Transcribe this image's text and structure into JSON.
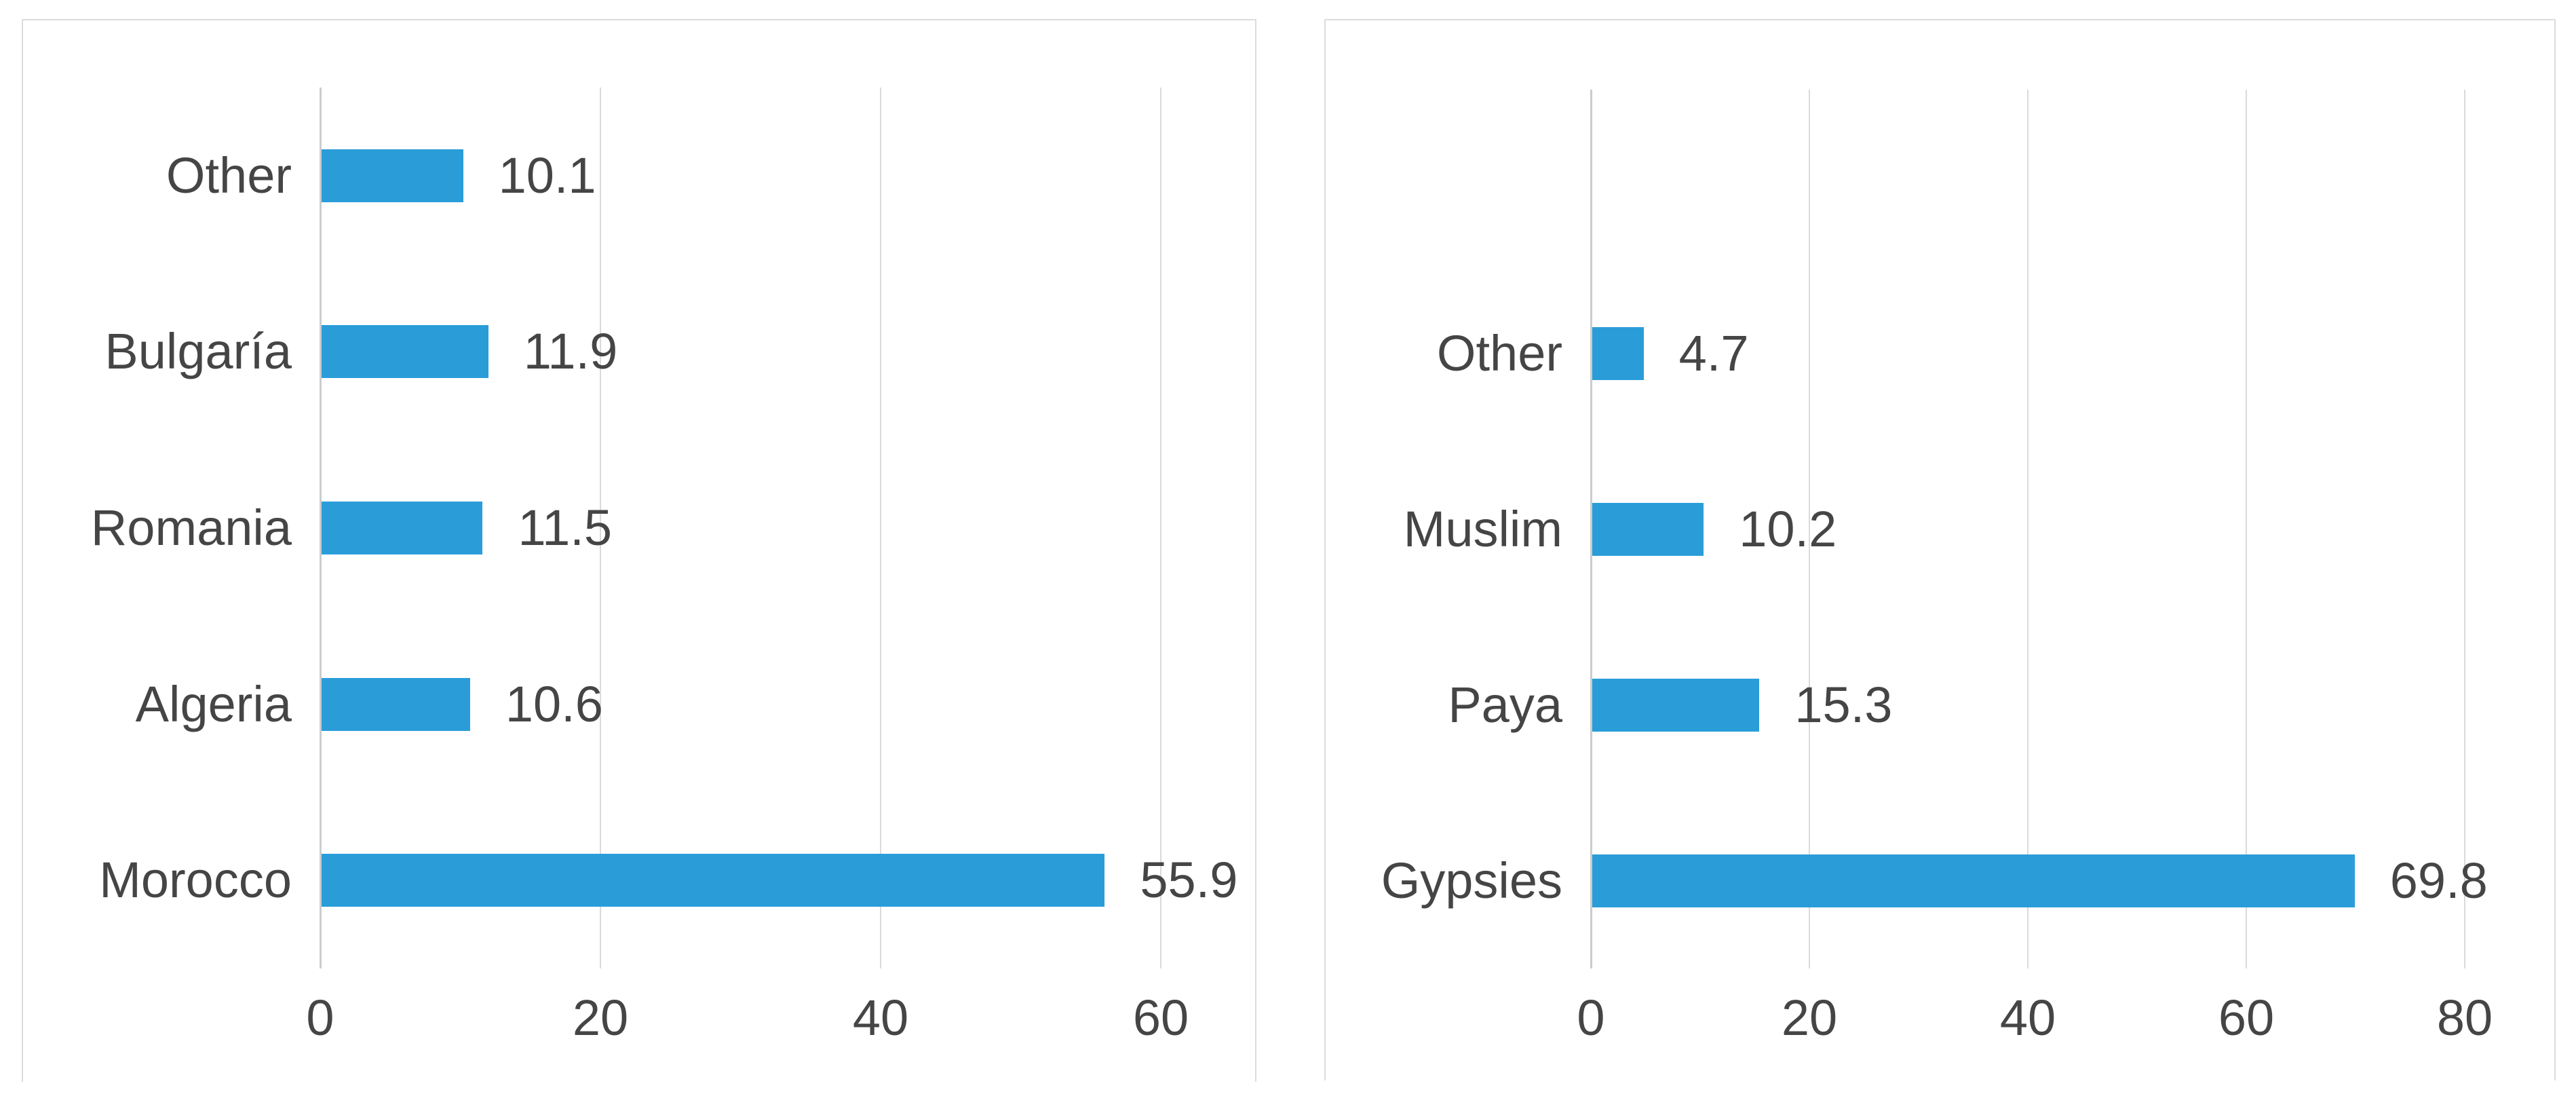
{
  "chart_data": [
    {
      "type": "bar",
      "orientation": "horizontal",
      "title": "",
      "categories": [
        "Other",
        "Bulgaría",
        "Romania",
        "Algeria",
        "Morocco"
      ],
      "values": [
        10.1,
        11.9,
        11.5,
        10.6,
        55.9
      ],
      "data_labels": [
        "10.1",
        "11.9",
        "11.5",
        "10.6",
        "55.9"
      ],
      "x_ticks": [
        0,
        20,
        40,
        60
      ],
      "x_tick_labels": [
        "0",
        "20",
        "40",
        "60"
      ],
      "xlim": [
        0,
        62
      ],
      "grid": true,
      "legend": "none",
      "row_slots": 5,
      "row_slot_offset": 0
    },
    {
      "type": "bar",
      "orientation": "horizontal",
      "title": "",
      "categories": [
        "Other",
        "Muslim",
        "Paya",
        "Gypsies"
      ],
      "values": [
        4.7,
        10.2,
        15.3,
        69.8
      ],
      "data_labels": [
        "4.7",
        "10.2",
        "15.3",
        "69.8"
      ],
      "x_ticks": [
        0,
        20,
        40,
        60,
        80
      ],
      "x_tick_labels": [
        "0",
        "20",
        "40",
        "60",
        "80"
      ],
      "xlim": [
        0,
        85
      ],
      "grid": true,
      "legend": "none",
      "row_slots": 5,
      "row_slot_offset": 1
    }
  ],
  "style": {
    "bar_color": "#2a9dd9",
    "gridline_color": "#dadada",
    "axis_line_color": "#cccccc",
    "text_color": "#454545",
    "card_border_color": "#dcdcdc",
    "background_color": "#ffffff"
  }
}
